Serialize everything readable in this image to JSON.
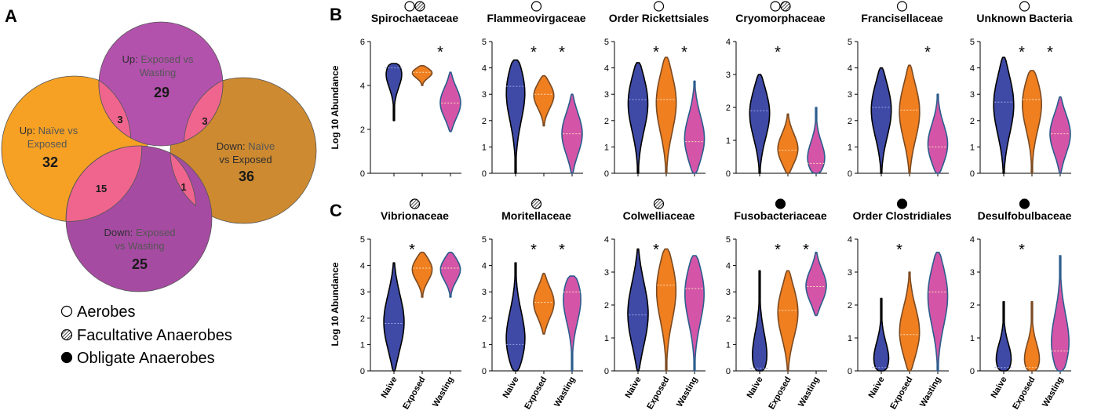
{
  "panel_labels": {
    "a": "A",
    "b": "B",
    "c": "C"
  },
  "colors": {
    "naive": "#3f4aa6",
    "exposed": "#f07f20",
    "wasting": "#d455a8",
    "venn_up_exposed_wasting": "#b352ad",
    "venn_up_naive_exposed": "#f6a124",
    "venn_down_naive_exposed": "#ce8a30",
    "venn_down_exposed_wasting": "#a64ba2",
    "venn_overlap": "#f0658e"
  },
  "venn": {
    "sets": [
      {
        "id": "up_ew",
        "prefix": "Up:",
        "line1_rest": "Exposed vs",
        "line2": "Wasting",
        "count": "29"
      },
      {
        "id": "up_ne",
        "prefix": "Up:",
        "line1_rest": "Naïve vs",
        "line2": "Exposed",
        "count": "32"
      },
      {
        "id": "down_ne",
        "prefix": "Down:",
        "line1_rest": "Naïve",
        "line2": "vs Exposed",
        "count": "36"
      },
      {
        "id": "down_ew",
        "prefix": "Down:",
        "line1_rest": "Exposed",
        "line2": "vs Wasting",
        "count": "25"
      }
    ],
    "overlaps": [
      {
        "between": [
          "up_ne",
          "up_ew"
        ],
        "count": "3"
      },
      {
        "between": [
          "up_ew",
          "down_ne"
        ],
        "count": "3"
      },
      {
        "between": [
          "up_ne",
          "down_ew"
        ],
        "count": "15"
      },
      {
        "between": [
          "down_ew",
          "down_ne"
        ],
        "count": "1"
      }
    ]
  },
  "legend": [
    {
      "icon": "open-circle-icon",
      "label": "Aerobes"
    },
    {
      "icon": "hatched-circle-icon",
      "label": "Facultative Anaerobes"
    },
    {
      "icon": "filled-circle-icon",
      "label": "Obligate Anaerobes"
    }
  ],
  "ylabel": "Log 10 Abundance",
  "groups": [
    "Naive",
    "Exposed",
    "Wasting"
  ],
  "chart_data": [
    {
      "type": "violin",
      "title": "Spirochaetaceae",
      "oxygen": [
        "aerobe",
        "facultative"
      ],
      "ylim": [
        0,
        6
      ],
      "yticks": [
        0,
        2,
        4,
        6
      ],
      "significant": [
        "Wasting"
      ],
      "series": [
        {
          "name": "Naive",
          "min": 2.4,
          "max": 5.0,
          "median": 4.8
        },
        {
          "name": "Exposed",
          "min": 4.0,
          "max": 4.9,
          "median": 4.6
        },
        {
          "name": "Wasting",
          "min": 1.9,
          "max": 4.6,
          "median": 3.2
        }
      ]
    },
    {
      "type": "violin",
      "title": "Flammeovirgaceae",
      "oxygen": [
        "aerobe"
      ],
      "ylim": [
        0,
        5
      ],
      "yticks": [
        0,
        1,
        2,
        3,
        4,
        5
      ],
      "significant": [
        "Exposed",
        "Wasting"
      ],
      "series": [
        {
          "name": "Naive",
          "min": 0.0,
          "max": 4.3,
          "median": 3.3
        },
        {
          "name": "Exposed",
          "min": 1.8,
          "max": 3.7,
          "median": 3.0
        },
        {
          "name": "Wasting",
          "min": 0.0,
          "max": 3.0,
          "median": 1.5
        }
      ]
    },
    {
      "type": "violin",
      "title": "Order Rickettsiales",
      "oxygen": [
        "aerobe"
      ],
      "ylim": [
        0,
        5
      ],
      "yticks": [
        0,
        1,
        2,
        3,
        4,
        5
      ],
      "significant": [
        "Exposed",
        "Wasting"
      ],
      "series": [
        {
          "name": "Naive",
          "min": 0.0,
          "max": 4.2,
          "median": 2.8
        },
        {
          "name": "Exposed",
          "min": 0.0,
          "max": 4.4,
          "median": 2.8
        },
        {
          "name": "Wasting",
          "min": 0.0,
          "max": 3.5,
          "median": 1.2
        }
      ]
    },
    {
      "type": "violin",
      "title": "Cryomorphaceae",
      "oxygen": [
        "aerobe",
        "facultative"
      ],
      "ylim": [
        0,
        4
      ],
      "yticks": [
        0,
        1,
        2,
        3,
        4
      ],
      "significant": [
        "Exposed"
      ],
      "series": [
        {
          "name": "Naive",
          "min": 0.0,
          "max": 3.0,
          "median": 1.9
        },
        {
          "name": "Exposed",
          "min": 0.0,
          "max": 1.8,
          "median": 0.7
        },
        {
          "name": "Wasting",
          "min": 0.0,
          "max": 2.0,
          "median": 0.3
        }
      ]
    },
    {
      "type": "violin",
      "title": "Francisellaceae",
      "oxygen": [
        "aerobe"
      ],
      "ylim": [
        0,
        5
      ],
      "yticks": [
        0,
        1,
        2,
        3,
        4,
        5
      ],
      "significant": [
        "Wasting"
      ],
      "series": [
        {
          "name": "Naive",
          "min": 0.0,
          "max": 4.0,
          "median": 2.5
        },
        {
          "name": "Exposed",
          "min": 0.0,
          "max": 4.1,
          "median": 2.4
        },
        {
          "name": "Wasting",
          "min": 0.0,
          "max": 3.0,
          "median": 1.0
        }
      ]
    },
    {
      "type": "violin",
      "title": "Unknown Bacteria",
      "oxygen": [
        "aerobe"
      ],
      "ylim": [
        0,
        5
      ],
      "yticks": [
        0,
        1,
        2,
        3,
        4,
        5
      ],
      "significant": [
        "Exposed",
        "Wasting"
      ],
      "series": [
        {
          "name": "Naive",
          "min": 0.0,
          "max": 4.4,
          "median": 2.7
        },
        {
          "name": "Exposed",
          "min": 0.0,
          "max": 3.9,
          "median": 2.8
        },
        {
          "name": "Wasting",
          "min": 0.0,
          "max": 2.9,
          "median": 1.5
        }
      ]
    },
    {
      "type": "violin",
      "title": "Vibrionaceae",
      "oxygen": [
        "facultative"
      ],
      "ylim": [
        0,
        5
      ],
      "yticks": [
        0,
        1,
        2,
        3,
        4,
        5
      ],
      "significant": [
        "Exposed"
      ],
      "series": [
        {
          "name": "Naive",
          "min": 0.0,
          "max": 4.1,
          "median": 1.8
        },
        {
          "name": "Exposed",
          "min": 2.8,
          "max": 4.5,
          "median": 3.9
        },
        {
          "name": "Wasting",
          "min": 2.8,
          "max": 4.5,
          "median": 3.9
        }
      ]
    },
    {
      "type": "violin",
      "title": "Moritellaceae",
      "oxygen": [
        "facultative"
      ],
      "ylim": [
        0,
        5
      ],
      "yticks": [
        0,
        1,
        2,
        3,
        4,
        5
      ],
      "significant": [
        "Exposed",
        "Wasting"
      ],
      "series": [
        {
          "name": "Naive",
          "min": 0.0,
          "max": 4.1,
          "median": 1.0
        },
        {
          "name": "Exposed",
          "min": 1.4,
          "max": 3.7,
          "median": 2.6
        },
        {
          "name": "Wasting",
          "min": 0.0,
          "max": 3.6,
          "median": 3.0
        }
      ]
    },
    {
      "type": "violin",
      "title": "Colwelliaceae",
      "oxygen": [
        "facultative"
      ],
      "ylim": [
        0,
        4
      ],
      "yticks": [
        0,
        1,
        2,
        3,
        4
      ],
      "significant": [
        "Exposed"
      ],
      "series": [
        {
          "name": "Naive",
          "min": 0.0,
          "max": 3.7,
          "median": 1.7
        },
        {
          "name": "Exposed",
          "min": 0.0,
          "max": 3.7,
          "median": 2.6
        },
        {
          "name": "Wasting",
          "min": 0.0,
          "max": 3.5,
          "median": 2.5
        }
      ]
    },
    {
      "type": "violin",
      "title": "Fusobacteriaceae",
      "oxygen": [
        "obligate"
      ],
      "ylim": [
        0,
        5
      ],
      "yticks": [
        0,
        1,
        2,
        3,
        4,
        5
      ],
      "significant": [
        "Exposed",
        "Wasting"
      ],
      "series": [
        {
          "name": "Naive",
          "min": 0.0,
          "max": 3.8,
          "median": 0.1
        },
        {
          "name": "Exposed",
          "min": 0.0,
          "max": 3.8,
          "median": 2.3
        },
        {
          "name": "Wasting",
          "min": 2.1,
          "max": 4.5,
          "median": 3.2
        }
      ]
    },
    {
      "type": "violin",
      "title": "Order Clostridiales",
      "oxygen": [
        "obligate"
      ],
      "ylim": [
        0,
        4
      ],
      "yticks": [
        0,
        1,
        2,
        3,
        4
      ],
      "significant": [
        "Exposed"
      ],
      "series": [
        {
          "name": "Naive",
          "min": 0.0,
          "max": 2.2,
          "median": 0.1
        },
        {
          "name": "Exposed",
          "min": 0.0,
          "max": 3.0,
          "median": 1.1
        },
        {
          "name": "Wasting",
          "min": 0.0,
          "max": 3.6,
          "median": 2.4
        }
      ]
    },
    {
      "type": "violin",
      "title": "Desulfobulbaceae",
      "oxygen": [
        "obligate"
      ],
      "ylim": [
        0,
        4
      ],
      "yticks": [
        0,
        1,
        2,
        3,
        4
      ],
      "significant": [
        "Exposed"
      ],
      "series": [
        {
          "name": "Naive",
          "min": 0.0,
          "max": 2.1,
          "median": 0.1
        },
        {
          "name": "Exposed",
          "min": 0.0,
          "max": 2.1,
          "median": 0.1
        },
        {
          "name": "Wasting",
          "min": 0.0,
          "max": 3.5,
          "median": 0.6
        }
      ]
    }
  ]
}
